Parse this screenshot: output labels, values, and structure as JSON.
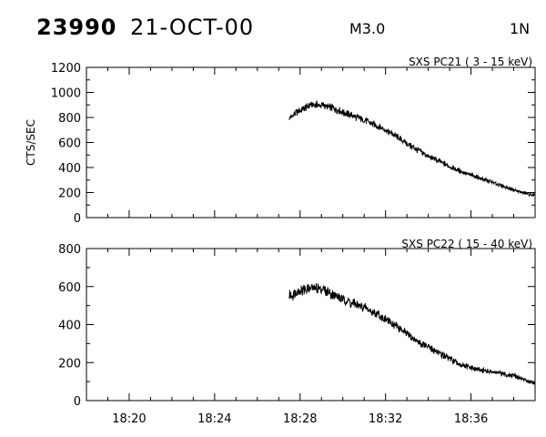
{
  "header": {
    "event_id": "23990",
    "date": "21-OCT-00",
    "flare_class": "M3.0",
    "position": "1N"
  },
  "colors": {
    "trace": "#000000",
    "background": "#ffffff",
    "axes": "#000000"
  },
  "chart_data": [
    {
      "type": "line",
      "title": "SXS PC21  (  3 - 15 keV)",
      "ylabel": "CTS/SEC",
      "xlabel": "",
      "xlim": [
        "18:18",
        "18:39"
      ],
      "ylim": [
        0,
        1200
      ],
      "yticks": [
        0,
        200,
        400,
        600,
        800,
        1000,
        1200
      ],
      "ytick_labels": [
        "0",
        "200",
        "400",
        "600",
        "800",
        "1000",
        "1200"
      ],
      "xtick_labels_shown": false,
      "grid": false,
      "legend": "none",
      "series": [
        {
          "x": [
            "18:27.5",
            "18:28",
            "18:28.5",
            "18:29",
            "18:29.5",
            "18:30",
            "18:30.5",
            "18:31",
            "18:31.5",
            "18:32",
            "18:32.5",
            "18:33",
            "18:33.5",
            "18:34",
            "18:34.5",
            "18:35",
            "18:35.5",
            "18:36",
            "18:36.5",
            "18:37",
            "18:37.5",
            "18:38",
            "18:38.5",
            "18:39"
          ],
          "values": [
            800,
            860,
            900,
            900,
            880,
            840,
            810,
            780,
            740,
            700,
            650,
            590,
            540,
            490,
            450,
            410,
            370,
            340,
            310,
            280,
            250,
            220,
            195,
            175
          ]
        }
      ]
    },
    {
      "type": "line",
      "title": "SXS PC22  ( 15 - 40 keV)",
      "ylabel": "",
      "xlabel": "",
      "xlim": [
        "18:18",
        "18:39"
      ],
      "ylim": [
        0,
        800
      ],
      "yticks": [
        0,
        200,
        400,
        600,
        800
      ],
      "ytick_labels": [
        "0",
        "200",
        "400",
        "600",
        "800"
      ],
      "xticks": [
        "18:20",
        "18:24",
        "18:28",
        "18:32",
        "18:36"
      ],
      "xtick_labels": [
        "18:20",
        "18:24",
        "18:28",
        "18:32",
        "18:36"
      ],
      "grid": false,
      "legend": "none",
      "series": [
        {
          "x": [
            "18:27.5",
            "18:28",
            "18:28.5",
            "18:29",
            "18:29.5",
            "18:30",
            "18:30.5",
            "18:31",
            "18:31.5",
            "18:32",
            "18:32.5",
            "18:33",
            "18:33.5",
            "18:34",
            "18:34.5",
            "18:35",
            "18:35.5",
            "18:36",
            "18:36.5",
            "18:37",
            "18:37.5",
            "18:38",
            "18:38.5",
            "18:39"
          ],
          "values": [
            550,
            580,
            590,
            590,
            560,
            530,
            510,
            490,
            460,
            430,
            390,
            350,
            310,
            280,
            250,
            220,
            190,
            170,
            160,
            150,
            140,
            130,
            110,
            90
          ]
        }
      ]
    }
  ]
}
